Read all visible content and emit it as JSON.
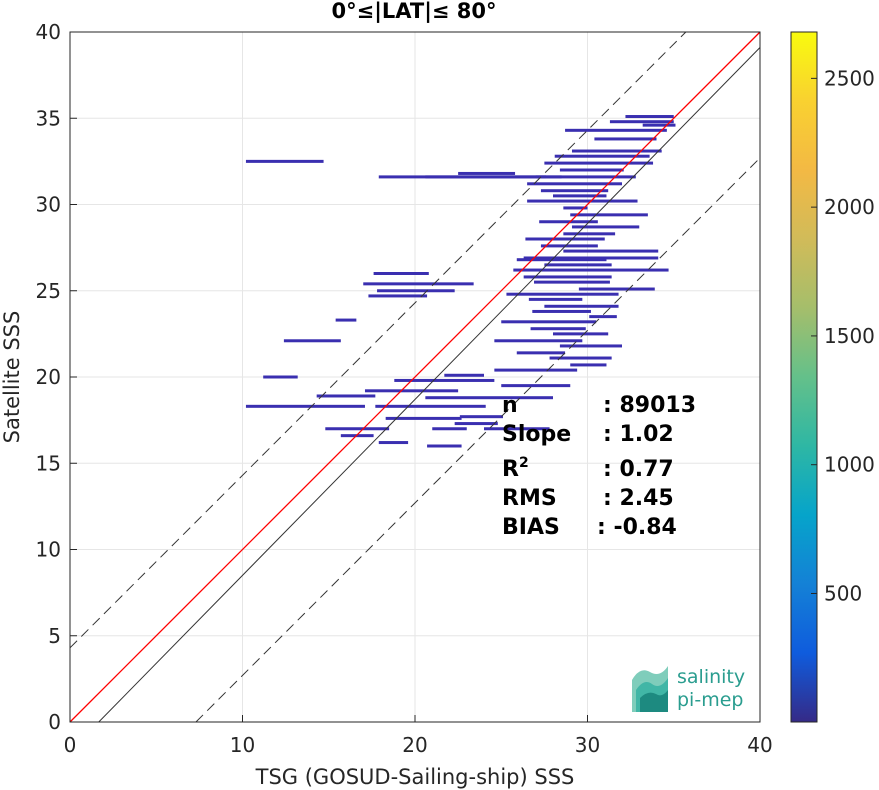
{
  "chart_data": {
    "type": "heatmap",
    "title": "0°≤|LAT|≤ 80°",
    "xlabel": "TSG (GOSUD-Sailing-ship) SSS",
    "ylabel": "Satellite SSS",
    "xlim": [
      0,
      40
    ],
    "ylim": [
      0,
      40
    ],
    "x_ticks": [
      "0",
      "10",
      "20",
      "30",
      "40"
    ],
    "y_ticks": [
      "0",
      "5",
      "10",
      "15",
      "20",
      "25",
      "30",
      "35",
      "40"
    ],
    "grid": true,
    "colorbar": {
      "range": [
        1,
        2680
      ],
      "ticks": [
        "500",
        "1000",
        "1500",
        "2000",
        "2500"
      ],
      "colormap": "parula"
    },
    "reference_lines": [
      {
        "name": "one-to-one",
        "color": "#ff0000",
        "slope": 1,
        "intercept": 0,
        "style": "solid"
      },
      {
        "name": "fit",
        "color": "#333333",
        "slope": 1.02,
        "intercept": -1.7,
        "style": "solid"
      },
      {
        "name": "upper-bound",
        "color": "#333333",
        "slope": 1,
        "intercept": 4.3,
        "style": "dashed"
      },
      {
        "name": "lower-bound",
        "color": "#333333",
        "slope": 1,
        "intercept": -7.3,
        "style": "dashed"
      }
    ],
    "density_segments": [
      [
        10.2,
        14.7,
        32.5
      ],
      [
        17.9,
        28.5,
        31.6
      ],
      [
        20.6,
        27.6,
        31.6
      ],
      [
        22.5,
        25.8,
        31.8
      ],
      [
        28.7,
        34.6,
        34.3
      ],
      [
        31.3,
        35.0,
        34.8
      ],
      [
        30.4,
        34.0,
        33.8
      ],
      [
        29.1,
        34.3,
        33.1
      ],
      [
        28.1,
        33.6,
        32.8
      ],
      [
        27.5,
        33.8,
        32.4
      ],
      [
        28.4,
        32.1,
        32.0
      ],
      [
        27.0,
        32.8,
        31.6
      ],
      [
        26.5,
        32.0,
        31.2
      ],
      [
        27.3,
        31.2,
        30.8
      ],
      [
        28.0,
        31.1,
        30.5
      ],
      [
        26.5,
        32.9,
        30.2
      ],
      [
        28.6,
        30.0,
        29.8
      ],
      [
        29.0,
        33.5,
        29.4
      ],
      [
        27.2,
        30.6,
        29.0
      ],
      [
        29.1,
        33.0,
        28.7
      ],
      [
        28.6,
        31.6,
        28.3
      ],
      [
        26.4,
        31.0,
        28.0
      ],
      [
        27.3,
        30.6,
        27.6
      ],
      [
        28.6,
        34.1,
        27.3
      ],
      [
        26.3,
        34.1,
        26.9
      ],
      [
        27.5,
        31.4,
        26.5
      ],
      [
        25.7,
        34.7,
        26.2
      ],
      [
        26.3,
        31.4,
        25.8
      ],
      [
        26.9,
        31.3,
        25.5
      ],
      [
        29.5,
        33.9,
        25.1
      ],
      [
        25.3,
        31.8,
        24.8
      ],
      [
        26.6,
        29.7,
        24.5
      ],
      [
        27.5,
        31.8,
        24.1
      ],
      [
        26.8,
        30.2,
        23.8
      ],
      [
        30.1,
        31.7,
        23.5
      ],
      [
        25.0,
        30.5,
        23.2
      ],
      [
        26.7,
        29.9,
        22.8
      ],
      [
        28.0,
        31.2,
        22.5
      ],
      [
        24.6,
        29.7,
        22.1
      ],
      [
        28.4,
        32.0,
        21.8
      ],
      [
        25.9,
        28.7,
        21.4
      ],
      [
        27.8,
        31.4,
        21.1
      ],
      [
        29.0,
        31.1,
        20.7
      ],
      [
        24.6,
        29.4,
        20.4
      ],
      [
        21.7,
        24.0,
        20.1
      ],
      [
        18.8,
        24.6,
        19.8
      ],
      [
        25.0,
        29.0,
        19.5
      ],
      [
        17.1,
        22.5,
        19.2
      ],
      [
        20.6,
        28.0,
        18.8
      ],
      [
        14.3,
        17.7,
        18.9
      ],
      [
        10.2,
        17.1,
        18.3
      ],
      [
        17.7,
        24.1,
        18.3
      ],
      [
        18.3,
        22.7,
        17.6
      ],
      [
        22.6,
        25.1,
        17.7
      ],
      [
        22.3,
        24.8,
        17.3
      ],
      [
        24.0,
        27.8,
        17.0
      ],
      [
        21.0,
        23.0,
        17.0
      ],
      [
        14.8,
        18.5,
        17.0
      ],
      [
        15.7,
        17.6,
        16.6
      ],
      [
        17.9,
        19.6,
        16.2
      ],
      [
        20.7,
        22.7,
        16.0
      ],
      [
        11.2,
        13.2,
        20.0
      ],
      [
        12.4,
        15.7,
        22.1
      ],
      [
        15.4,
        16.6,
        23.3
      ],
      [
        17.3,
        20.7,
        24.7
      ],
      [
        17.8,
        22.3,
        25.0
      ],
      [
        17.0,
        23.4,
        25.4
      ],
      [
        17.6,
        20.8,
        26.0
      ],
      [
        25.9,
        31.1,
        26.8
      ],
      [
        32.2,
        35.0,
        35.1
      ],
      [
        33.2,
        35.1,
        34.6
      ]
    ],
    "stats": [
      {
        "label": "n",
        "value": ": 89013"
      },
      {
        "label": "Slope",
        "value": ": 1.02"
      },
      {
        "label": "R",
        "sup": "2",
        "value": ": 0.77"
      },
      {
        "label": "RMS",
        "value": ": 2.45"
      },
      {
        "label": "BIAS",
        "value": ": -0.84"
      }
    ]
  },
  "logo": {
    "line1": "salinity",
    "line2": "pi-mep"
  }
}
